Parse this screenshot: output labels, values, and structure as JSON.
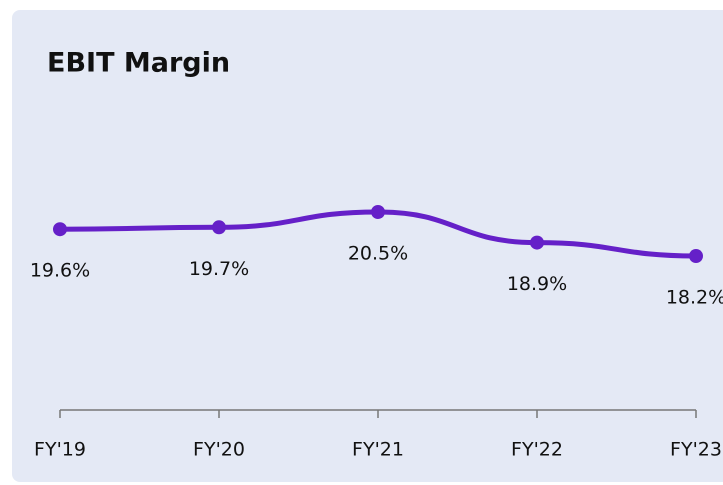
{
  "chart_data": {
    "type": "line",
    "title": "EBIT Margin",
    "categories": [
      "FY'19",
      "FY'20",
      "FY'21",
      "FY'22",
      "FY'23"
    ],
    "series": [
      {
        "color": "#6520c8",
        "values": [
          19.6,
          19.7,
          20.5,
          18.9,
          18.2
        ],
        "value_labels": [
          "19.6%",
          "19.7%",
          "20.5%",
          "18.9%",
          "18.2%"
        ]
      }
    ]
  }
}
